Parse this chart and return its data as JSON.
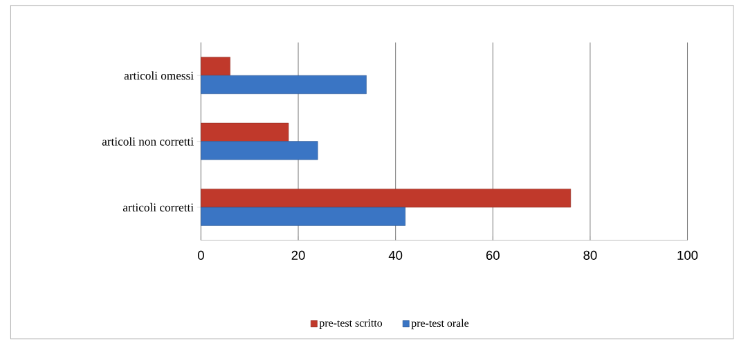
{
  "chart_data": {
    "type": "bar",
    "orientation": "horizontal",
    "categories": [
      "articoli omessi",
      "articoli non corretti",
      "articoli corretti"
    ],
    "series": [
      {
        "name": "pre-test scritto",
        "color": "#c0392b",
        "values": [
          6,
          18,
          76
        ]
      },
      {
        "name": "pre-test orale",
        "color": "#3a75c4",
        "values": [
          34,
          24,
          42
        ]
      }
    ],
    "xlim": [
      0,
      100
    ],
    "xticks": [
      0,
      20,
      40,
      60,
      80,
      100
    ],
    "grid": "x",
    "legend": "bottom"
  }
}
